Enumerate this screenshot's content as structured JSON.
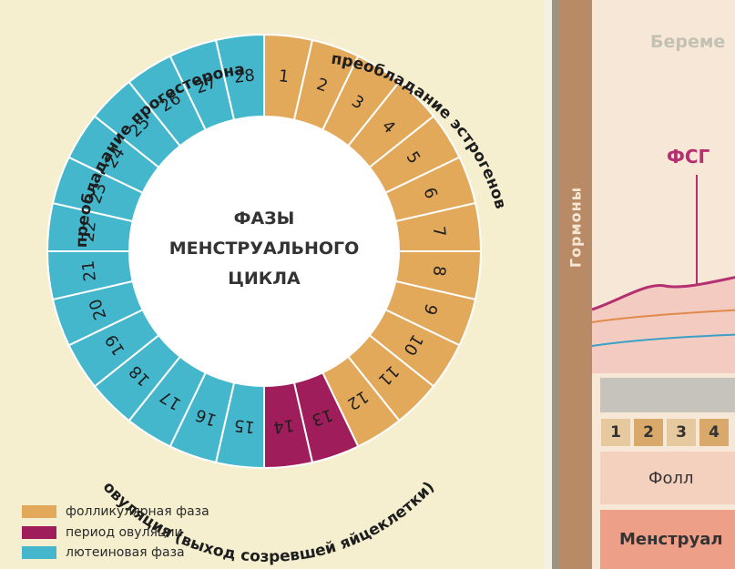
{
  "wheel": {
    "center_lines": [
      "ФАЗЫ",
      "МЕНСТРУАЛЬНОГО",
      "ЦИКЛА"
    ],
    "days": [
      "1",
      "2",
      "3",
      "4",
      "5",
      "6",
      "7",
      "8",
      "9",
      "10",
      "11",
      "12",
      "13",
      "14",
      "15",
      "16",
      "17",
      "18",
      "19",
      "20",
      "21",
      "22",
      "23",
      "24",
      "25",
      "26",
      "27",
      "28"
    ],
    "day_phase": [
      "f",
      "f",
      "f",
      "f",
      "f",
      "f",
      "f",
      "f",
      "f",
      "f",
      "f",
      "f",
      "o",
      "o",
      "l",
      "l",
      "l",
      "l",
      "l",
      "l",
      "l",
      "l",
      "l",
      "l",
      "l",
      "l",
      "l",
      "l"
    ],
    "arc_labels": {
      "progesterone": "преобладание прогестерона",
      "estrogen": "преобладание эстрогенов",
      "ovulation": "овуляция (выход созревшей яйцеклетки)"
    },
    "colors": {
      "follicular": "#e3a95b",
      "ovulation": "#a01d5c",
      "luteal": "#45b7cd"
    }
  },
  "legend": [
    {
      "label": "фолликулярная фаза",
      "color": "#e3a95b"
    },
    {
      "label": "период овуляции",
      "color": "#a01d5c"
    },
    {
      "label": "лютеиновая фаза",
      "color": "#45b7cd"
    }
  ],
  "right": {
    "title": "Береме",
    "hormones": "Гормоны",
    "fsh": "ФСГ",
    "day_numbers": [
      "1",
      "2",
      "3",
      "4"
    ],
    "follicular": "Фолл",
    "menstrual": "Менструал"
  }
}
